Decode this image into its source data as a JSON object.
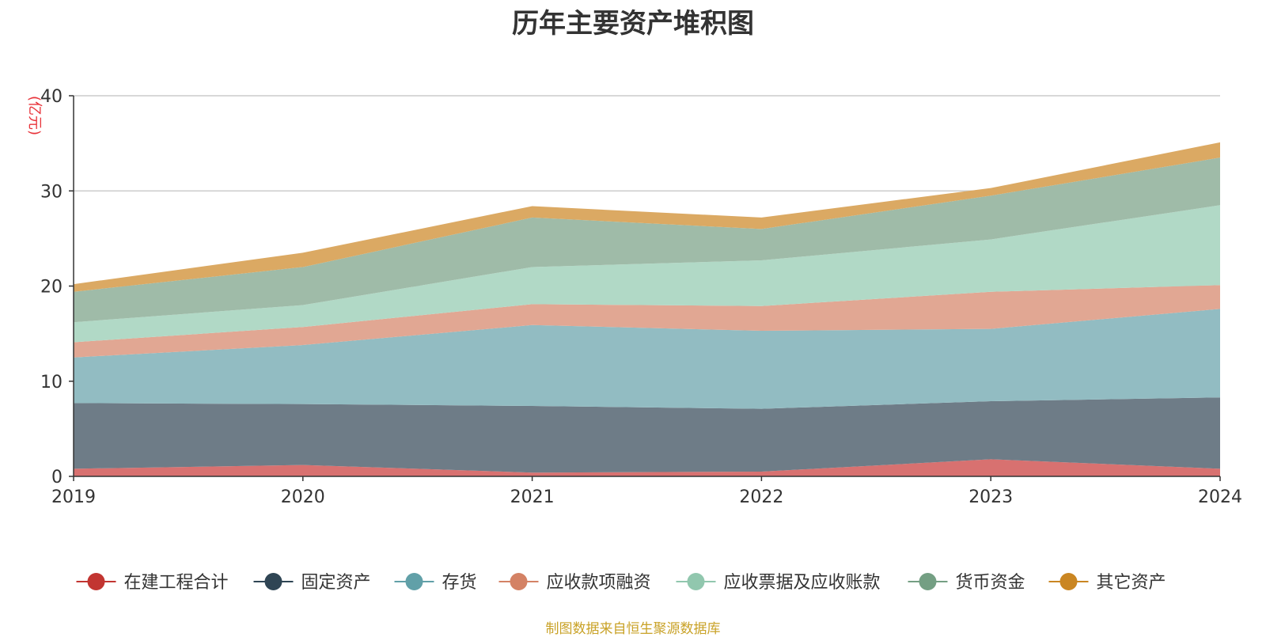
{
  "chart_data": {
    "type": "area",
    "stacked": true,
    "title": "历年主要资产堆积图",
    "unit_label": "(亿元)",
    "source_note": "制图数据来自恒生聚源数据库",
    "x": [
      "2019",
      "2020",
      "2021",
      "2022",
      "2023",
      "2024"
    ],
    "ylim": [
      0,
      40
    ],
    "yticks": [
      0,
      10,
      20,
      30,
      40
    ],
    "grid": true,
    "legend_position": "bottom",
    "series": [
      {
        "name": "在建工程合计",
        "color": "#c23531",
        "fill": "#d87170",
        "values": [
          0.8,
          1.2,
          0.4,
          0.5,
          1.8,
          0.8
        ]
      },
      {
        "name": "固定资产",
        "color": "#2f4554",
        "fill": "#6e7c87",
        "values": [
          6.9,
          6.4,
          7.0,
          6.6,
          6.1,
          7.5
        ]
      },
      {
        "name": "存货",
        "color": "#61a0a8",
        "fill": "#92bcc2",
        "values": [
          4.8,
          6.2,
          8.5,
          8.2,
          7.6,
          9.3
        ]
      },
      {
        "name": "应收款项融资",
        "color": "#d48265",
        "fill": "#e1a793",
        "values": [
          1.6,
          1.9,
          2.2,
          2.6,
          3.9,
          2.5
        ]
      },
      {
        "name": "应收票据及应收账款",
        "color": "#91c7ae",
        "fill": "#b1d9c6",
        "values": [
          2.1,
          2.3,
          3.9,
          4.8,
          5.5,
          8.4
        ]
      },
      {
        "name": "货币资金",
        "color": "#749f83",
        "fill": "#9fbba8",
        "values": [
          3.2,
          4.0,
          5.2,
          3.3,
          4.6,
          5.0
        ]
      },
      {
        "name": "其它资产",
        "color": "#ca8622",
        "fill": "#dba963",
        "values": [
          0.8,
          1.5,
          1.2,
          1.2,
          0.8,
          1.6
        ]
      }
    ]
  }
}
